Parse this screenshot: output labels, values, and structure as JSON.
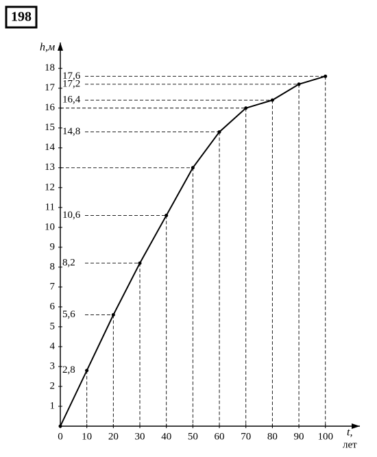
{
  "badge": "198",
  "chart_data": {
    "type": "line",
    "ylabel": "h,м",
    "xlabel": "t,",
    "xunit": "лет",
    "x": [
      0,
      10,
      20,
      30,
      40,
      50,
      60,
      70,
      80,
      90,
      100
    ],
    "series": [
      {
        "color": "#000000",
        "values": [
          0,
          2.8,
          5.6,
          8.2,
          10.6,
          13,
          14.8,
          16,
          16.4,
          17.2,
          17.6
        ],
        "value_labels": [
          null,
          "2,8",
          "5,6",
          "8,2",
          "10,6",
          null,
          "14,8",
          null,
          "16,4",
          "17,2",
          "17,6"
        ]
      }
    ],
    "xlim": [
      0,
      113
    ],
    "ylim": [
      0,
      19.3
    ],
    "xticks": [
      0,
      10,
      20,
      30,
      40,
      50,
      60,
      70,
      80,
      90,
      100
    ],
    "yticks": [
      1,
      2,
      3,
      4,
      5,
      6,
      7,
      8,
      9,
      10,
      11,
      12,
      13,
      14,
      15,
      16,
      17,
      18
    ],
    "guides": true
  }
}
